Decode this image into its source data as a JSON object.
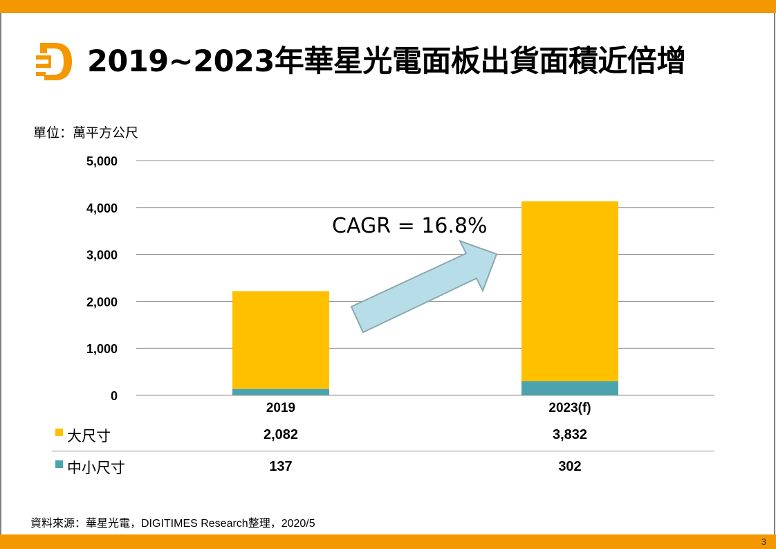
{
  "header": {
    "title": "2019~2023年華星光電面板出貨面積近倍增",
    "logo_icon": "digitimes-d-logo-icon",
    "brand_color": "#F39800"
  },
  "unit_label": "單位：萬平方公尺",
  "chart_data": {
    "type": "bar",
    "stacked": true,
    "title": "2019~2023年華星光電面板出貨面積近倍增",
    "xlabel": "",
    "ylabel": "單位：萬平方公尺",
    "categories": [
      "2019",
      "2023(f)"
    ],
    "series": [
      {
        "name": "中小尺寸",
        "values": [
          137,
          302
        ],
        "display": [
          "137",
          "302"
        ],
        "color": "#4BA3AD"
      },
      {
        "name": "大尺寸",
        "values": [
          2082,
          3832
        ],
        "display": [
          "2,082",
          "3,832"
        ],
        "color": "#FFC000"
      }
    ],
    "ylim": [
      0,
      5000
    ],
    "yticks": [
      0,
      1000,
      2000,
      3000,
      4000,
      5000
    ],
    "ytick_labels": [
      "0",
      "1,000",
      "2,000",
      "3,000",
      "4,000",
      "5,000"
    ],
    "grid": true,
    "legend": "data-table-below",
    "annotation": {
      "text": "CAGR = 16.8%",
      "arrow_color": "#B7DEE8",
      "arrow_stroke": "#8AA9AE"
    }
  },
  "table": {
    "rows": [
      {
        "label": "大尺寸",
        "color": "#FFC000",
        "values": [
          "2,082",
          "3,832"
        ]
      },
      {
        "label": "中小尺寸",
        "color": "#4BA3AD",
        "values": [
          "137",
          "302"
        ]
      }
    ]
  },
  "footer": {
    "source": "資料來源：華星光電，DIGITIMES Research整理，2020/5",
    "page_number": "3"
  }
}
